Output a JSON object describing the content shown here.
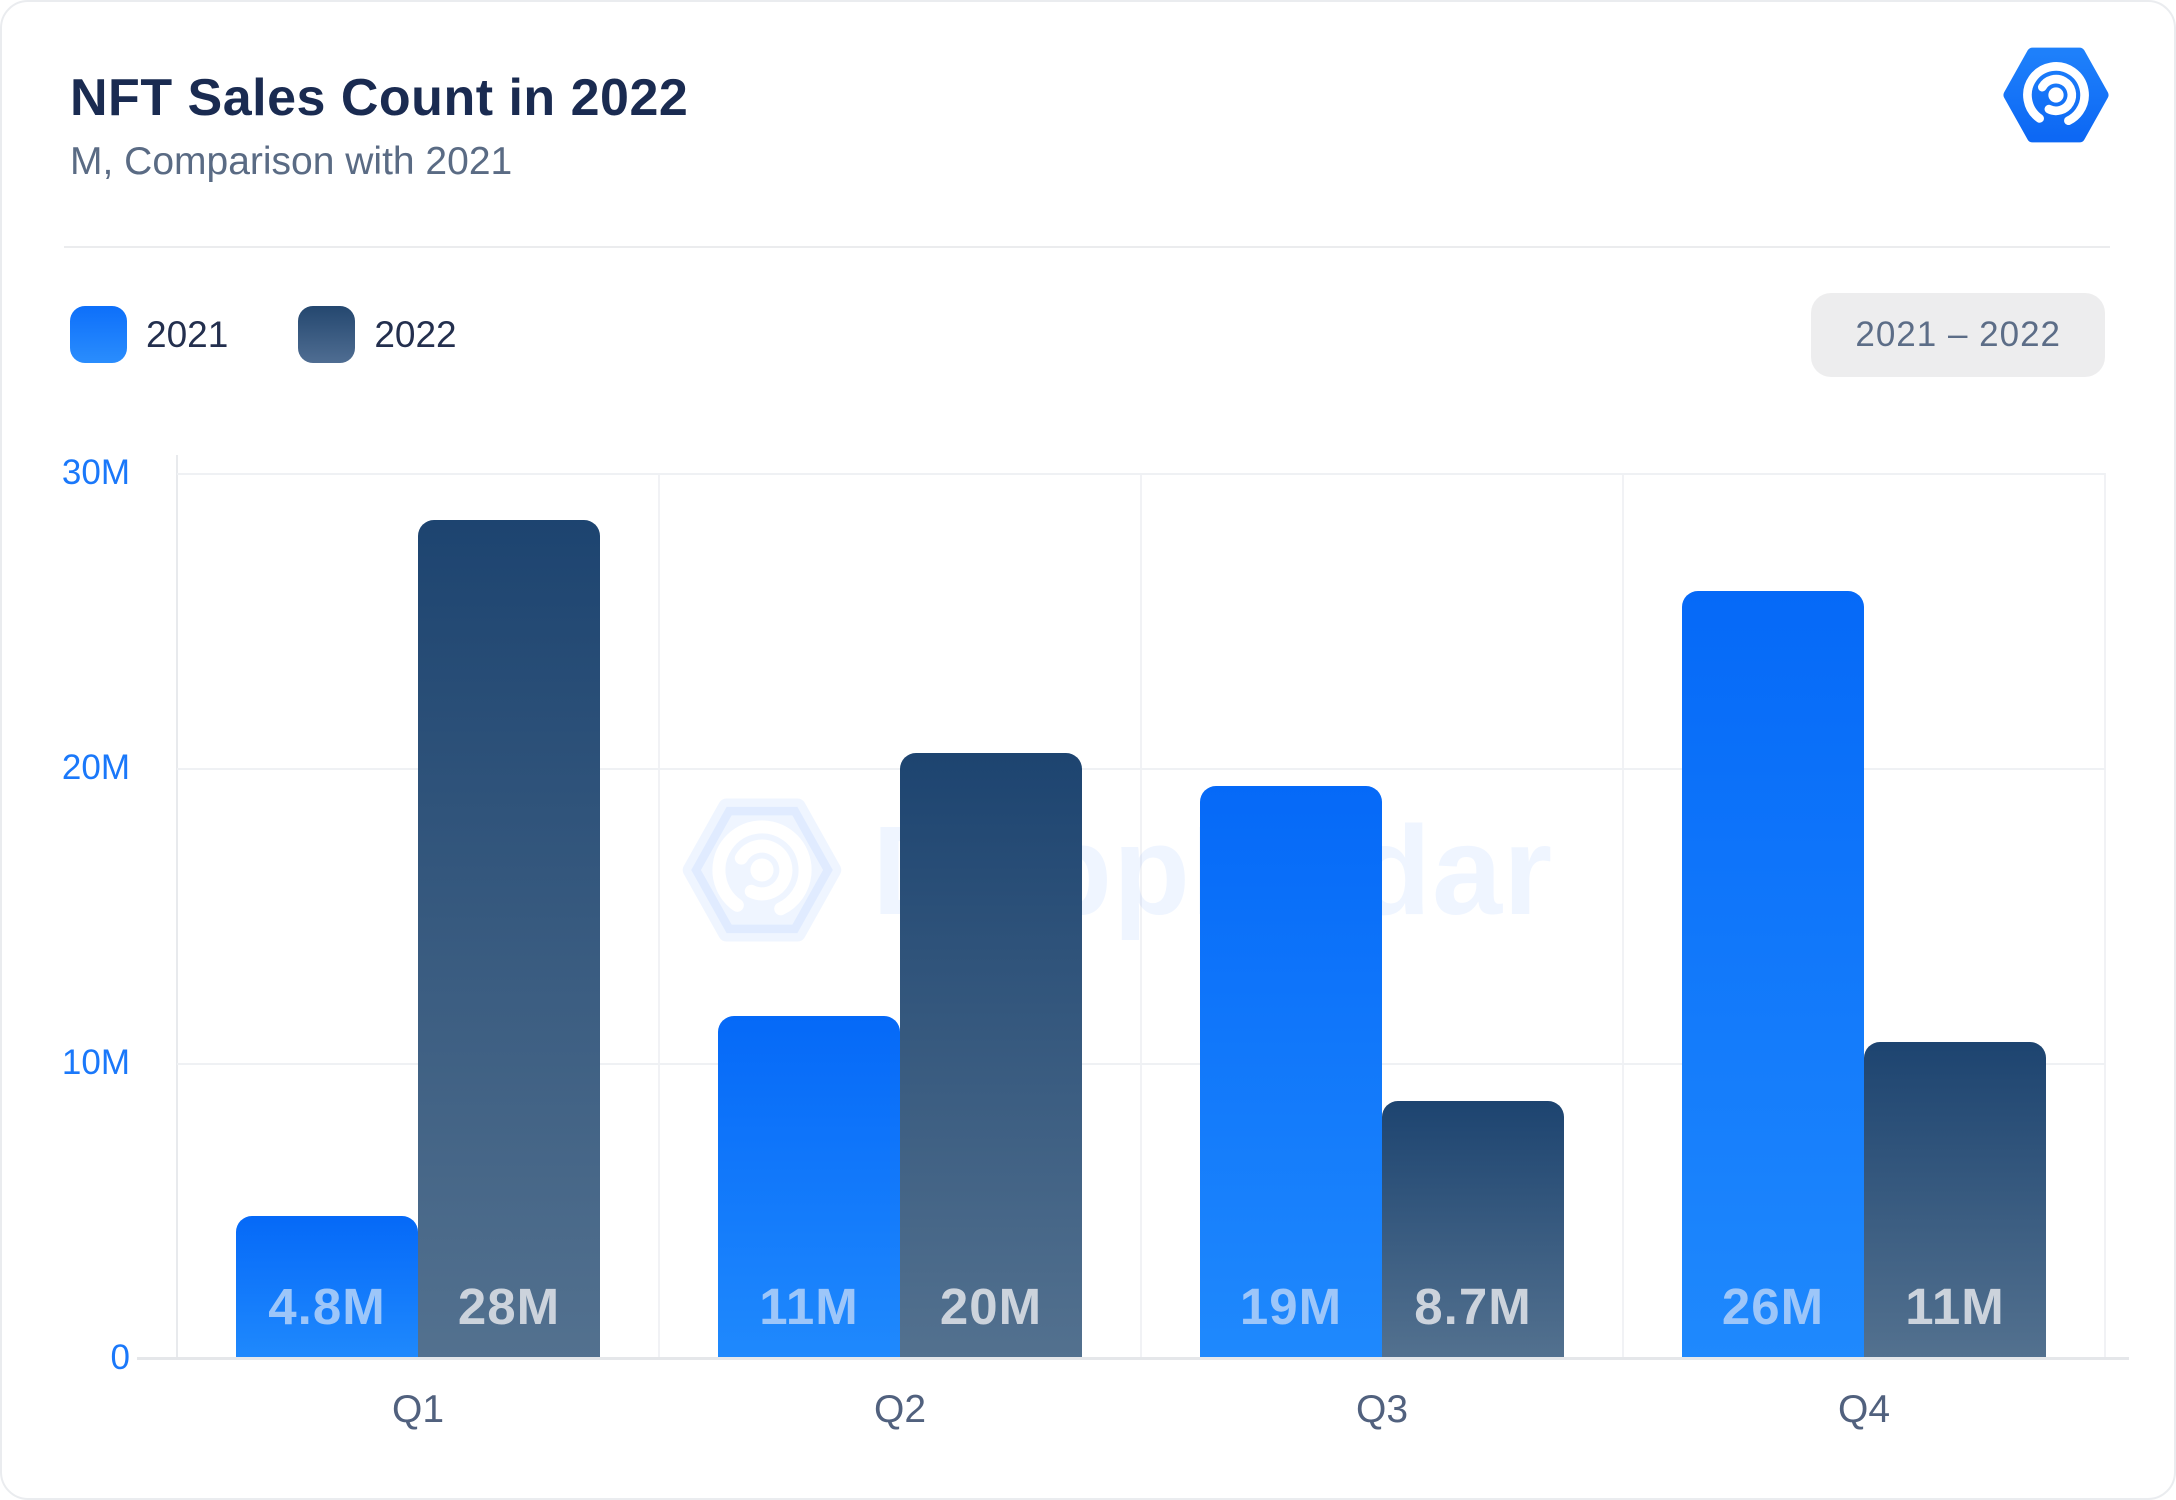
{
  "header": {
    "title": "NFT Sales Count in 2022",
    "subtitle": "M, Comparison with 2021"
  },
  "legend": {
    "items": [
      {
        "label": "2021",
        "color_top": "#0d6ffa",
        "color_bottom": "#2a8dfd"
      },
      {
        "label": "2022",
        "color_top": "#24476f",
        "color_bottom": "#4f6d92"
      }
    ]
  },
  "range_badge": {
    "label": "2021 – 2022"
  },
  "logo": {
    "name": "dappradar-hexagon-radar-logo",
    "color": "#1474fa"
  },
  "watermark": {
    "text": "DappRadar"
  },
  "chart_data": {
    "type": "bar",
    "title": "NFT Sales Count in 2022",
    "subtitle": "M, Comparison with 2021",
    "unit": "M",
    "categories": [
      "Q1",
      "Q2",
      "Q3",
      "Q4"
    ],
    "series": [
      {
        "name": "2021",
        "values": [
          4.8,
          11,
          19,
          26
        ],
        "labels": [
          "4.8M",
          "11M",
          "19M",
          "26M"
        ],
        "plot_values": [
          4.8,
          11.6,
          19.4,
          26.0
        ],
        "bar_color_top": "#0569f8",
        "bar_color_bottom": "#1f89fd",
        "label_color": "#9dc6f9"
      },
      {
        "name": "2022",
        "values": [
          28,
          20,
          8.7,
          11
        ],
        "labels": [
          "28M",
          "20M",
          "8.7M",
          "11M"
        ],
        "plot_values": [
          28.4,
          20.5,
          8.7,
          10.7
        ],
        "bar_color_top": "#1d4470",
        "bar_color_bottom": "#53718f",
        "label_color": "#ccd3dc"
      }
    ],
    "ylim": [
      0,
      30
    ],
    "yticks": [
      "30M",
      "20M",
      "10M",
      "0"
    ],
    "ytick_color": "#1a78fa",
    "xtick_color": "#51617e",
    "grid": true,
    "legend_position": "top-left"
  }
}
